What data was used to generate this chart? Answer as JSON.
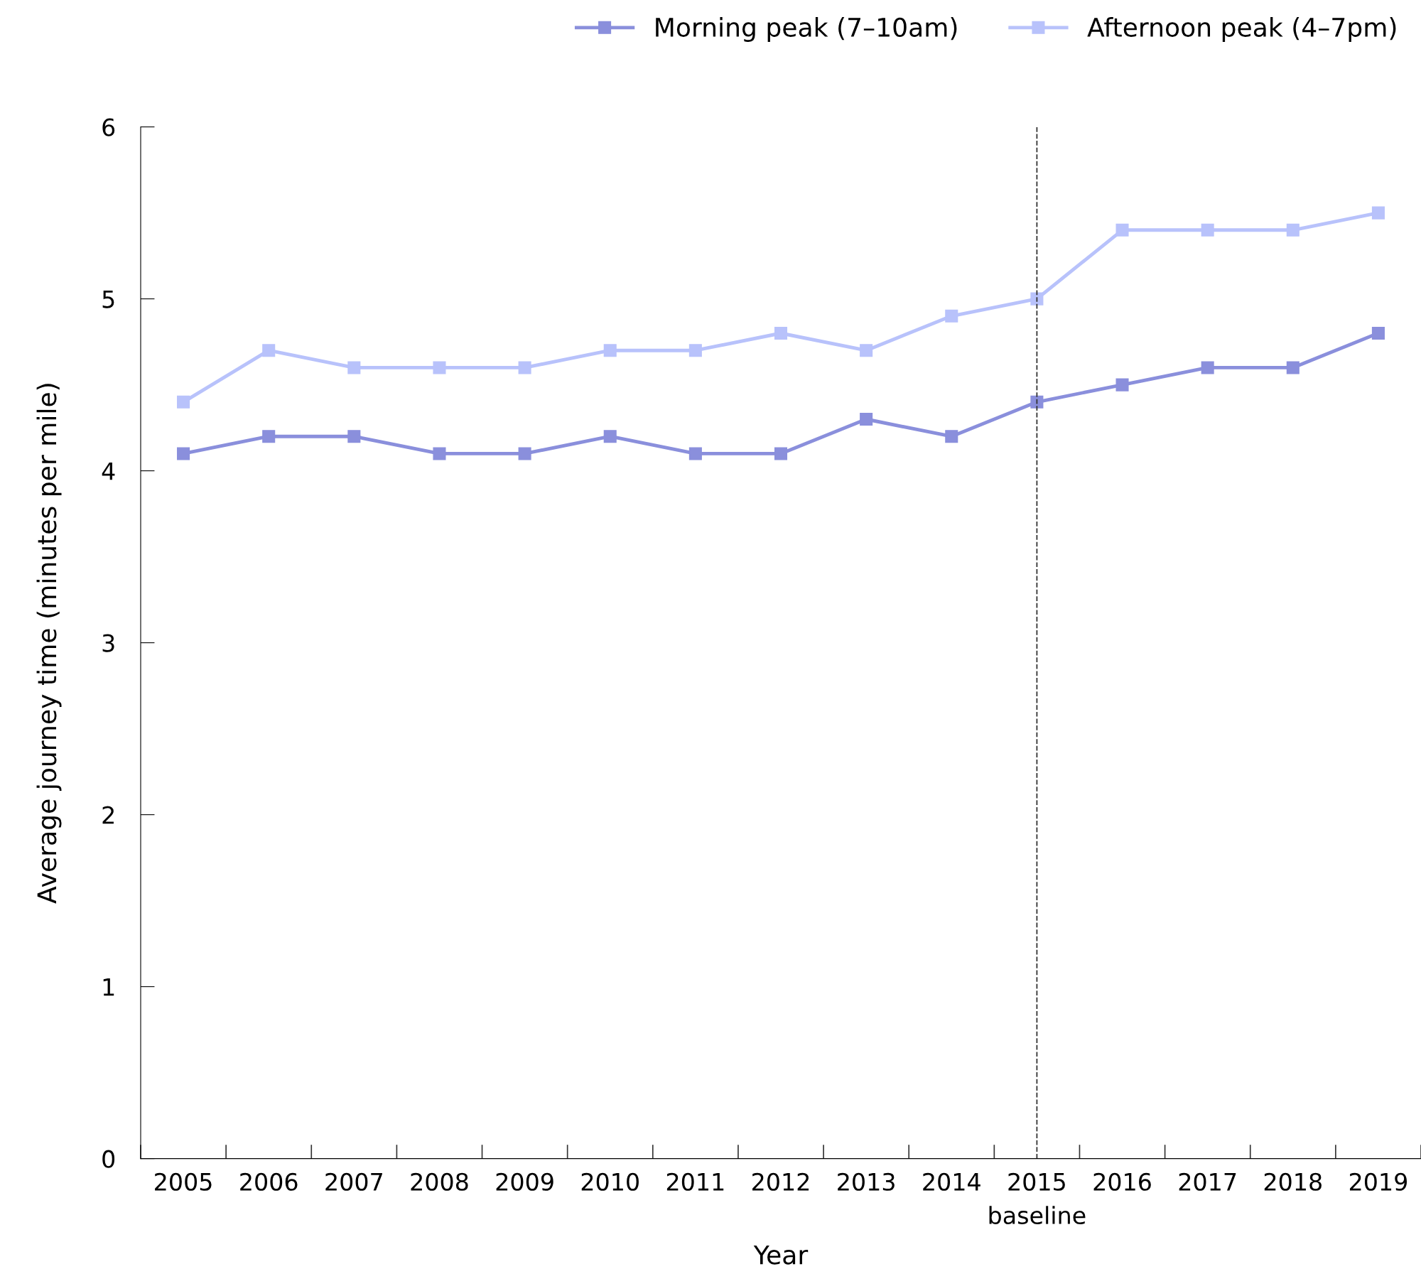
{
  "chart_data": {
    "type": "line",
    "xlabel": "Year",
    "ylabel": "Average journey time (minutes per mile)",
    "categories": [
      "2005",
      "2006",
      "2007",
      "2008",
      "2009",
      "2010",
      "2011",
      "2012",
      "2013",
      "2014",
      "2015",
      "2016",
      "2017",
      "2018",
      "2019"
    ],
    "series": [
      {
        "name": "Morning peak (7–10am)",
        "color": "#8a8fdc",
        "values": [
          4.1,
          4.2,
          4.2,
          4.1,
          4.1,
          4.2,
          4.1,
          4.1,
          4.3,
          4.2,
          4.4,
          4.5,
          4.6,
          4.6,
          4.8
        ]
      },
      {
        "name": "Afternoon peak (4–7pm)",
        "color": "#b8c2fb",
        "values": [
          4.4,
          4.7,
          4.6,
          4.6,
          4.6,
          4.7,
          4.7,
          4.8,
          4.7,
          4.9,
          5.0,
          5.4,
          5.4,
          5.4,
          5.5
        ]
      }
    ],
    "ylim": [
      0,
      6
    ],
    "yticks": [
      0,
      1,
      2,
      3,
      4,
      5,
      6
    ],
    "ref_lines": [
      {
        "axis": "x",
        "value": "2015",
        "label": "baseline",
        "color": "#333333",
        "line_style": "dashed"
      }
    ],
    "marker": "square",
    "line_style": "solid",
    "grid": false,
    "legend": "top right"
  }
}
